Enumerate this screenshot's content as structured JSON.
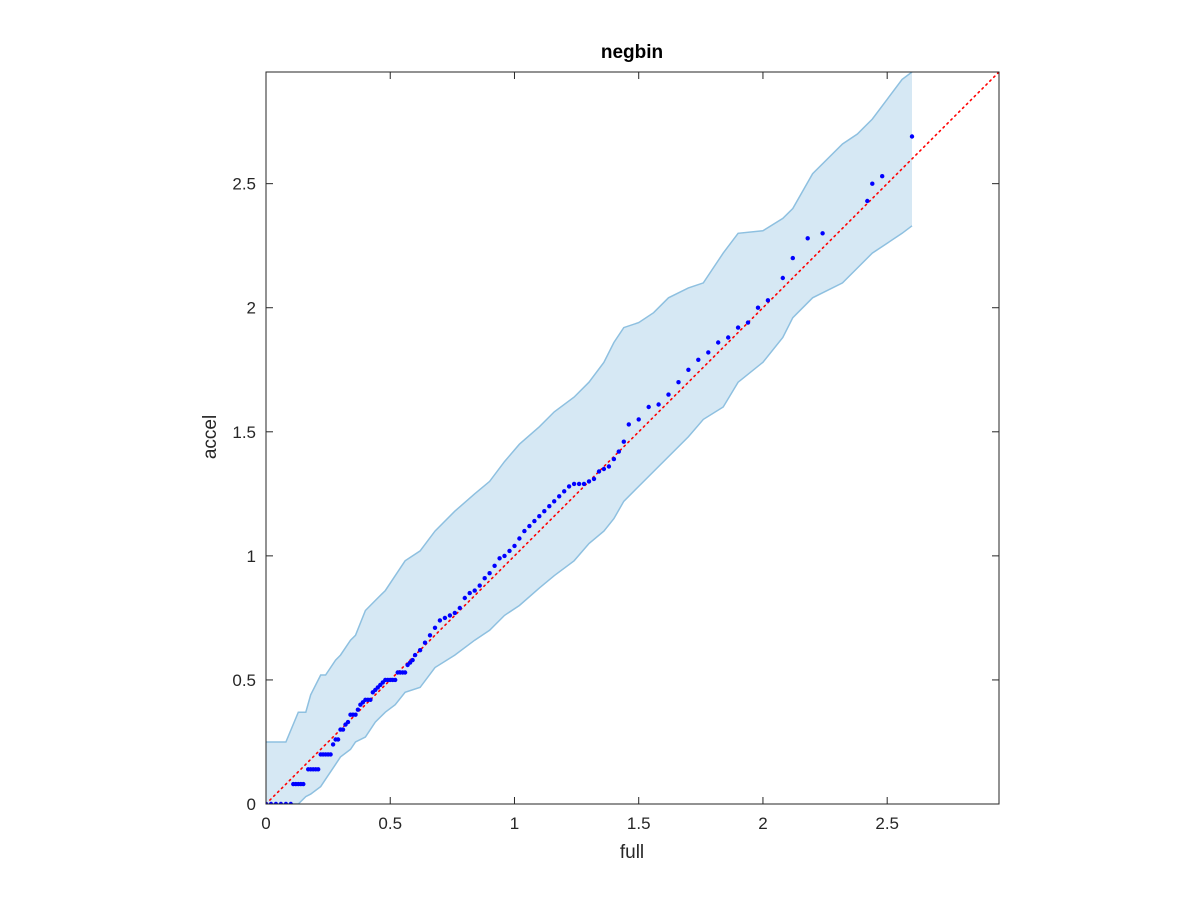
{
  "chart_data": {
    "type": "scatter",
    "title": "negbin",
    "xlabel": "full",
    "ylabel": "accel",
    "xlim": [
      0,
      2.95
    ],
    "ylim": [
      0,
      2.95
    ],
    "xticks": [
      0,
      0.5,
      1,
      1.5,
      2,
      2.5
    ],
    "yticks": [
      0,
      0.5,
      1,
      1.5,
      2,
      2.5
    ],
    "xtick_labels": [
      "0",
      "0.5",
      "1",
      "1.5",
      "2",
      "2.5"
    ],
    "ytick_labels": [
      "0",
      "0.5",
      "1",
      "1.5",
      "2",
      "2.5"
    ],
    "grid": false,
    "box": true,
    "colors": {
      "points": "#0000ff",
      "reference_line": "#ff0000",
      "band_fill": "#d6e8f4",
      "band_edge": "#8ec0e0",
      "axes": "#262626"
    },
    "series": [
      {
        "type": "scatter",
        "x": [
          0.0,
          0.02,
          0.04,
          0.06,
          0.08,
          0.1,
          0.11,
          0.12,
          0.13,
          0.14,
          0.15,
          0.17,
          0.18,
          0.19,
          0.2,
          0.21,
          0.22,
          0.23,
          0.24,
          0.25,
          0.26,
          0.27,
          0.28,
          0.29,
          0.3,
          0.31,
          0.32,
          0.33,
          0.34,
          0.35,
          0.36,
          0.37,
          0.38,
          0.39,
          0.4,
          0.41,
          0.42,
          0.43,
          0.44,
          0.45,
          0.46,
          0.47,
          0.48,
          0.49,
          0.5,
          0.51,
          0.52,
          0.53,
          0.54,
          0.55,
          0.56,
          0.57,
          0.58,
          0.59,
          0.6,
          0.62,
          0.64,
          0.66,
          0.68,
          0.7,
          0.72,
          0.74,
          0.76,
          0.78,
          0.8,
          0.82,
          0.84,
          0.86,
          0.88,
          0.9,
          0.92,
          0.94,
          0.96,
          0.98,
          1.0,
          1.02,
          1.04,
          1.06,
          1.08,
          1.1,
          1.12,
          1.14,
          1.16,
          1.18,
          1.2,
          1.22,
          1.24,
          1.26,
          1.28,
          1.3,
          1.32,
          1.34,
          1.36,
          1.38,
          1.4,
          1.42,
          1.44,
          1.46,
          1.5,
          1.54,
          1.58,
          1.62,
          1.66,
          1.7,
          1.74,
          1.78,
          1.82,
          1.86,
          1.9,
          1.94,
          1.98,
          2.02,
          2.08,
          2.12,
          2.18,
          2.24,
          2.42,
          2.44,
          2.48,
          2.6
        ],
        "y": [
          0.0,
          0.0,
          0.0,
          0.0,
          0.0,
          0.0,
          0.08,
          0.08,
          0.08,
          0.08,
          0.08,
          0.14,
          0.14,
          0.14,
          0.14,
          0.14,
          0.2,
          0.2,
          0.2,
          0.2,
          0.2,
          0.24,
          0.26,
          0.26,
          0.3,
          0.3,
          0.32,
          0.33,
          0.36,
          0.36,
          0.36,
          0.38,
          0.4,
          0.41,
          0.42,
          0.42,
          0.42,
          0.45,
          0.46,
          0.47,
          0.48,
          0.49,
          0.5,
          0.5,
          0.5,
          0.5,
          0.5,
          0.53,
          0.53,
          0.53,
          0.53,
          0.56,
          0.57,
          0.58,
          0.6,
          0.62,
          0.65,
          0.68,
          0.71,
          0.74,
          0.75,
          0.76,
          0.77,
          0.79,
          0.83,
          0.85,
          0.86,
          0.88,
          0.91,
          0.93,
          0.96,
          0.99,
          1.0,
          1.02,
          1.04,
          1.07,
          1.1,
          1.12,
          1.14,
          1.16,
          1.18,
          1.2,
          1.22,
          1.24,
          1.26,
          1.28,
          1.29,
          1.29,
          1.29,
          1.3,
          1.31,
          1.34,
          1.35,
          1.36,
          1.39,
          1.42,
          1.46,
          1.53,
          1.55,
          1.6,
          1.61,
          1.65,
          1.7,
          1.75,
          1.79,
          1.82,
          1.86,
          1.88,
          1.92,
          1.94,
          2.0,
          2.03,
          2.12,
          2.2,
          2.28,
          2.3,
          2.43,
          2.5,
          2.53,
          2.69
        ]
      },
      {
        "type": "line",
        "style": "dotted",
        "x": [
          0,
          2.95
        ],
        "y": [
          0,
          2.95
        ]
      },
      {
        "type": "band",
        "x": [
          0.0,
          0.0,
          0.08,
          0.13,
          0.16,
          0.18,
          0.22,
          0.24,
          0.28,
          0.3,
          0.34,
          0.36,
          0.4,
          0.44,
          0.48,
          0.52,
          0.56,
          0.62,
          0.68,
          0.76,
          0.84,
          0.9,
          0.96,
          1.02,
          1.1,
          1.16,
          1.24,
          1.3,
          1.36,
          1.4,
          1.44,
          1.5,
          1.56,
          1.62,
          1.7,
          1.76,
          1.84,
          1.9,
          2.0,
          2.08,
          2.12,
          2.2,
          2.32,
          2.38,
          2.44,
          2.5,
          2.56,
          2.6
        ],
        "upper": [
          0.25,
          0.25,
          0.25,
          0.37,
          0.37,
          0.44,
          0.52,
          0.52,
          0.58,
          0.6,
          0.66,
          0.68,
          0.78,
          0.82,
          0.86,
          0.92,
          0.98,
          1.02,
          1.1,
          1.18,
          1.25,
          1.3,
          1.38,
          1.45,
          1.52,
          1.58,
          1.64,
          1.7,
          1.78,
          1.86,
          1.92,
          1.94,
          1.98,
          2.04,
          2.08,
          2.1,
          2.22,
          2.3,
          2.31,
          2.36,
          2.4,
          2.54,
          2.66,
          2.7,
          2.76,
          2.84,
          2.92,
          2.95
        ],
        "lower": [
          0.0,
          0.0,
          0.0,
          0.0,
          0.03,
          0.04,
          0.07,
          0.1,
          0.16,
          0.19,
          0.22,
          0.25,
          0.27,
          0.33,
          0.37,
          0.4,
          0.45,
          0.47,
          0.55,
          0.6,
          0.66,
          0.7,
          0.76,
          0.8,
          0.87,
          0.92,
          0.98,
          1.05,
          1.1,
          1.15,
          1.22,
          1.28,
          1.34,
          1.4,
          1.48,
          1.55,
          1.6,
          1.7,
          1.78,
          1.88,
          1.96,
          2.04,
          2.1,
          2.16,
          2.22,
          2.26,
          2.3,
          2.33
        ]
      }
    ]
  }
}
